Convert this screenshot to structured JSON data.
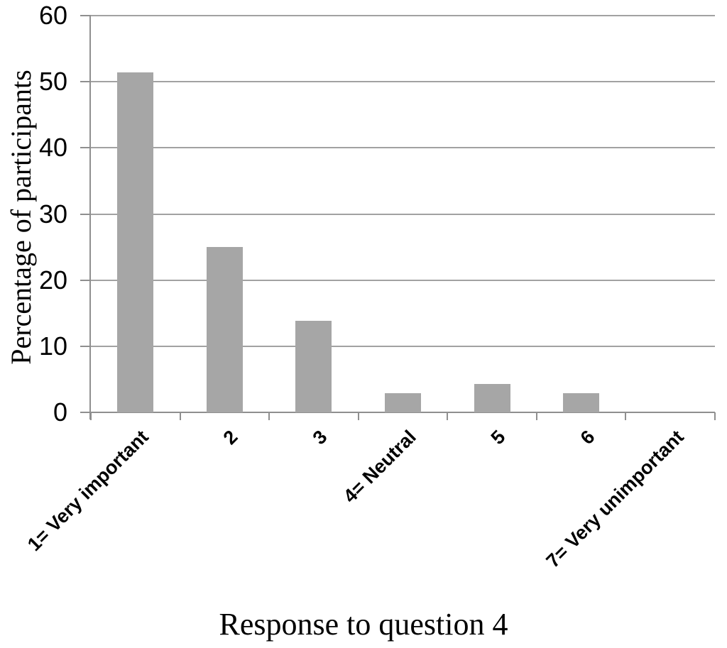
{
  "chart_data": {
    "type": "bar",
    "title": "",
    "xlabel": "Response to question 4",
    "ylabel": "Percentage of participants",
    "categories": [
      "1= Very important",
      "2",
      "3",
      "4= Neutral",
      "5",
      "6",
      "7= Very unimportant"
    ],
    "values": [
      51.4,
      25,
      13.9,
      2.9,
      4.3,
      2.9,
      0
    ],
    "ylim": [
      0,
      60
    ],
    "ytick_step": 10,
    "yticks": [
      0,
      10,
      20,
      30,
      40,
      50,
      60
    ],
    "grid": true,
    "legend": false,
    "bar_color": "#a6a6a6",
    "grid_color": "#a2a2a2",
    "axis_color": "#8f8f8f",
    "text_color": "#000000",
    "background_color": "#ffffff"
  }
}
